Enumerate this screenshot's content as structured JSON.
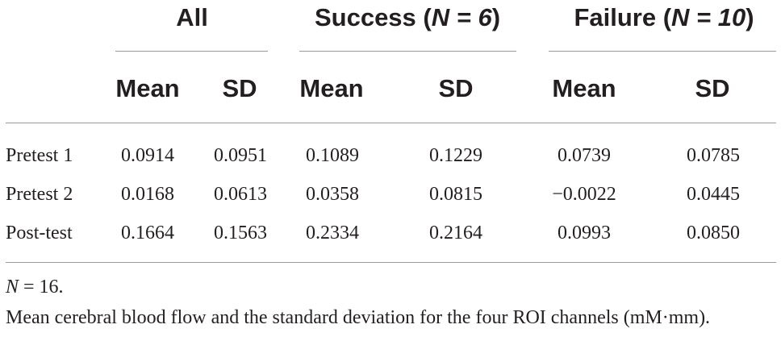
{
  "table": {
    "groups": [
      {
        "label": "All",
        "n_text": ""
      },
      {
        "label": "Success (",
        "n_text": "N = 6",
        "close": ")"
      },
      {
        "label": "Failure (",
        "n_text": "N = 10",
        "close": ")"
      }
    ],
    "subheaders": [
      "Mean",
      "SD",
      "Mean",
      "SD",
      "Mean",
      "SD"
    ],
    "rows": [
      {
        "label": "Pretest 1",
        "values": [
          "0.0914",
          "0.0951",
          "0.1089",
          "0.1229",
          "0.0739",
          "0.0785"
        ]
      },
      {
        "label": "Pretest 2",
        "values": [
          "0.0168",
          "0.0613",
          "0.0358",
          "0.0815",
          "−0.0022",
          "0.0445"
        ]
      },
      {
        "label": "Post-test",
        "values": [
          "0.1664",
          "0.1563",
          "0.2334",
          "0.2164",
          "0.0993",
          "0.0850"
        ]
      }
    ]
  },
  "footnote": {
    "n_label": "N",
    "n_value": " = 16."
  },
  "caption": "Mean cerebral blood flow and the standard deviation for the four ROI channels (mM·mm)."
}
